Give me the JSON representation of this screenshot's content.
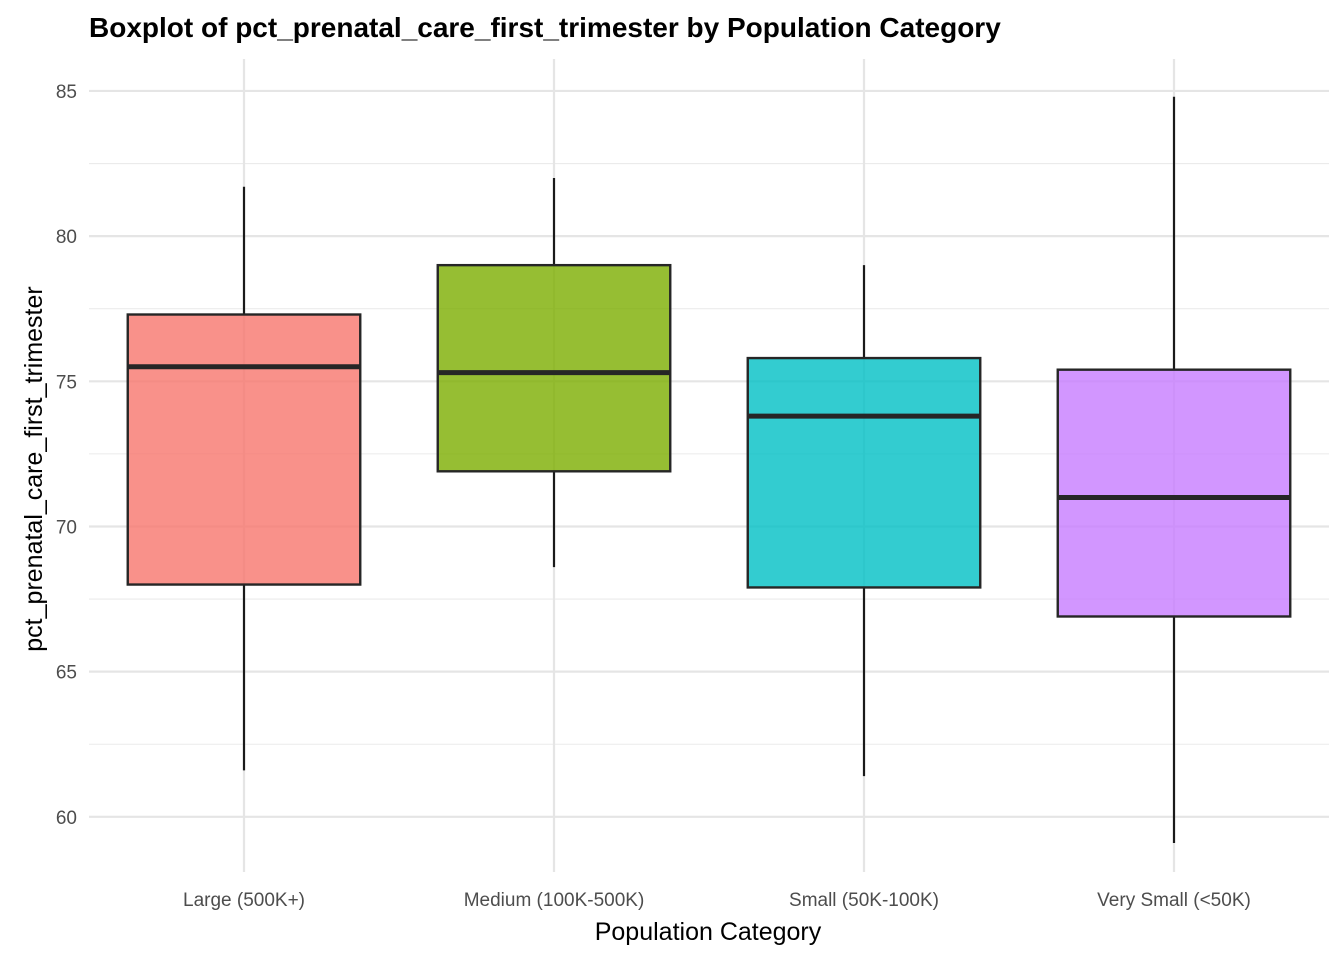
{
  "chart_data": {
    "type": "boxplot",
    "title": "Boxplot of pct_prenatal_care_first_trimester by Population Category",
    "xlabel": "Population Category",
    "ylabel": "pct_prenatal_care_first_trimester",
    "ylim": [
      58.1,
      86.1
    ],
    "yticks": [
      60,
      65,
      70,
      75,
      80,
      85
    ],
    "ytick_labels": [
      "60",
      "65",
      "70",
      "75",
      "80",
      "85"
    ],
    "grid": true,
    "legend": "none",
    "categories": [
      "Large (500K+)",
      "Medium (100K-500K)",
      "Small (50K-100K)",
      "Very Small (<50K)"
    ],
    "boxes": [
      {
        "category": "Large (500K+)",
        "min": 61.6,
        "q1": 68.0,
        "median": 75.5,
        "q3": 77.3,
        "max": 81.7,
        "color": "#F8766D"
      },
      {
        "category": "Medium (100K-500K)",
        "min": 68.6,
        "q1": 71.9,
        "median": 75.3,
        "q3": 79.0,
        "max": 82.0,
        "color": "#7CAE00"
      },
      {
        "category": "Small (50K-100K)",
        "min": 61.4,
        "q1": 67.9,
        "median": 73.8,
        "q3": 75.8,
        "max": 79.0,
        "color": "#00BFC4"
      },
      {
        "category": "Very Small (<50K)",
        "min": 59.1,
        "q1": 66.9,
        "median": 71.0,
        "q3": 75.4,
        "max": 84.8,
        "color": "#C77CFF"
      }
    ]
  }
}
